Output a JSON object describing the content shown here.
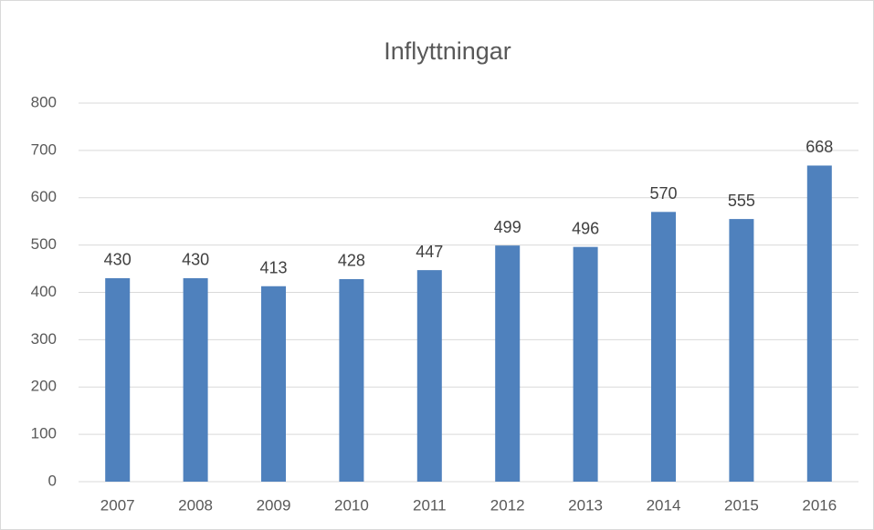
{
  "chart_data": {
    "type": "bar",
    "title": "Inflyttningar",
    "categories": [
      "2007",
      "2008",
      "2009",
      "2010",
      "2011",
      "2012",
      "2013",
      "2014",
      "2015",
      "2016"
    ],
    "values": [
      430,
      430,
      413,
      428,
      447,
      499,
      496,
      570,
      555,
      668
    ],
    "color": "#4f81bd",
    "ylim": [
      0,
      800
    ],
    "yticks": [
      0,
      100,
      200,
      300,
      400,
      500,
      600,
      700,
      800
    ],
    "grid": true
  }
}
